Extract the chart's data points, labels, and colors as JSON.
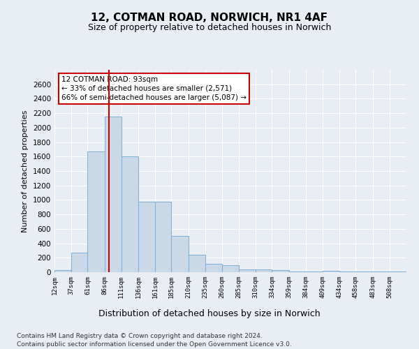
{
  "title1": "12, COTMAN ROAD, NORWICH, NR1 4AF",
  "title2": "Size of property relative to detached houses in Norwich",
  "xlabel": "Distribution of detached houses by size in Norwich",
  "ylabel": "Number of detached properties",
  "footnote1": "Contains HM Land Registry data © Crown copyright and database right 2024.",
  "footnote2": "Contains public sector information licensed under the Open Government Licence v3.0.",
  "annotation_title": "12 COTMAN ROAD: 93sqm",
  "annotation_line1": "← 33% of detached houses are smaller (2,571)",
  "annotation_line2": "66% of semi-detached houses are larger (5,087) →",
  "bar_color": "#c9d9e8",
  "bar_edge_color": "#7bafd4",
  "vline_color": "#cc0000",
  "vline_x": 93,
  "categories": [
    "12sqm",
    "37sqm",
    "61sqm",
    "86sqm",
    "111sqm",
    "136sqm",
    "161sqm",
    "185sqm",
    "210sqm",
    "235sqm",
    "260sqm",
    "285sqm",
    "310sqm",
    "334sqm",
    "359sqm",
    "384sqm",
    "409sqm",
    "434sqm",
    "458sqm",
    "483sqm",
    "508sqm"
  ],
  "bin_edges": [
    12,
    37,
    61,
    86,
    111,
    136,
    161,
    185,
    210,
    235,
    260,
    285,
    310,
    334,
    359,
    384,
    409,
    434,
    458,
    483,
    508,
    533
  ],
  "values": [
    25,
    275,
    1675,
    2150,
    1600,
    975,
    975,
    500,
    245,
    120,
    95,
    40,
    35,
    25,
    10,
    10,
    20,
    10,
    8,
    5,
    5
  ],
  "ylim": [
    0,
    2800
  ],
  "yticks": [
    0,
    200,
    400,
    600,
    800,
    1000,
    1200,
    1400,
    1600,
    1800,
    2000,
    2200,
    2400,
    2600
  ],
  "background_color": "#e8eef4",
  "grid_color": "#ffffff",
  "annotation_box_color": "#ffffff",
  "annotation_box_edge": "#cc0000"
}
